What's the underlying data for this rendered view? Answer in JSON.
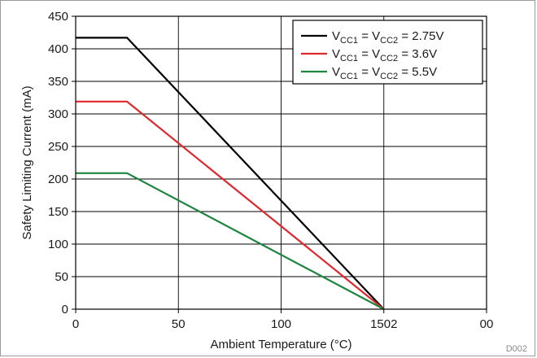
{
  "chart_data": {
    "type": "line",
    "xlabel": "Ambient Temperature (°C)",
    "ylabel": "Safety Limiting Current (mA)",
    "xlim": [
      0,
      200
    ],
    "ylim": [
      0,
      450
    ],
    "x_ticks": [
      "0",
      "50",
      "100",
      "150",
      "200"
    ],
    "x_tick_labels_as_printed": [
      "0",
      "50",
      "100",
      "1502",
      "00"
    ],
    "y_ticks": [
      "0",
      "50",
      "100",
      "150",
      "200",
      "250",
      "300",
      "350",
      "400",
      "450"
    ],
    "grid": true,
    "legend_position": "top-right",
    "series": [
      {
        "name": "VCC1 = VCC2 = 2.75V",
        "name_parts": {
          "v1": "V",
          "s1": "CC1",
          "eq1": " = V",
          "s2": "CC2",
          "eq2": " = 2.75V"
        },
        "color": "#000000",
        "x": [
          0,
          25,
          150
        ],
        "y": [
          417,
          417,
          0
        ]
      },
      {
        "name": "VCC1 = VCC2 = 3.6V",
        "name_parts": {
          "v1": "V",
          "s1": "CC1",
          "eq1": " = V",
          "s2": "CC2",
          "eq2": " = 3.6V"
        },
        "color": "#e0262d",
        "x": [
          0,
          25,
          150
        ],
        "y": [
          319,
          319,
          0
        ]
      },
      {
        "name": "VCC1 = VCC2 = 5.5V",
        "name_parts": {
          "v1": "V",
          "s1": "CC1",
          "eq1": " = V",
          "s2": "CC2",
          "eq2": " = 5.5V"
        },
        "color": "#1e8540",
        "x": [
          0,
          25,
          150
        ],
        "y": [
          209,
          209,
          0
        ]
      }
    ],
    "figure_id": "D002"
  }
}
